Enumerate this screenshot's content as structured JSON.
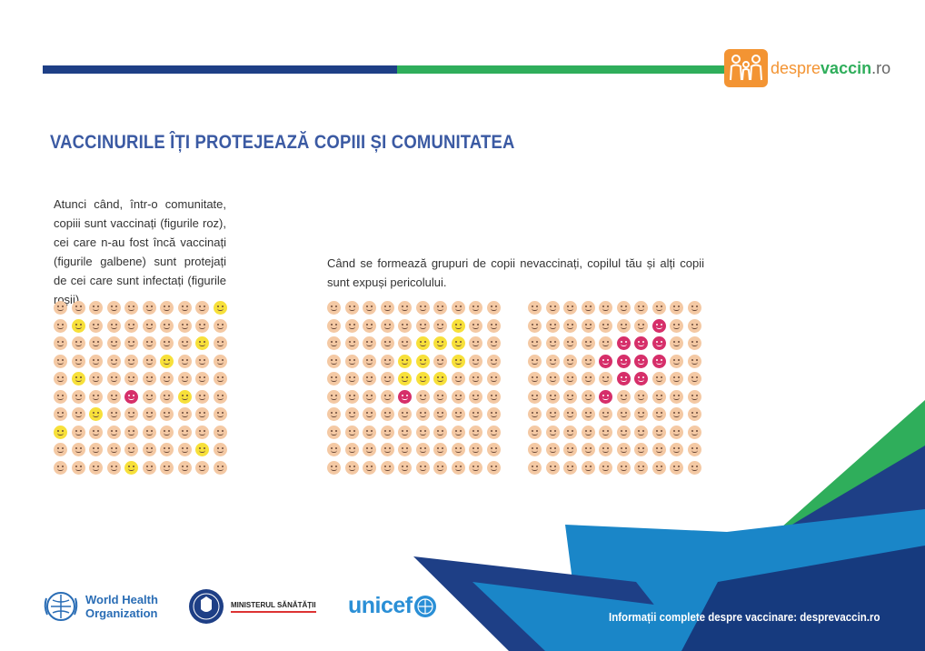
{
  "header": {
    "logo_text_part1": "despre",
    "logo_text_part2": "vaccin",
    "logo_text_part3": ".ro"
  },
  "title": "VACCINURILE ÎȚI PROTEJEAZĂ COPIII ȘI COMUNITATEA",
  "paragraph_left": "Atunci când, într-o comunitate, copiii sunt vaccinați (figurile roz), cei care n-au fost încă vaccinați (figurile galbene) sunt protejați de cei care sunt infectați (figurile roșii).",
  "paragraph_right": "Când se formează grupuri de copii nevaccinați, copilul tău și alți copii sunt expuși pericolului.",
  "grids": [
    {
      "yellow": [
        [
          0,
          9
        ],
        [
          1,
          1
        ],
        [
          2,
          8
        ],
        [
          3,
          6
        ],
        [
          4,
          1
        ],
        [
          5,
          7
        ],
        [
          6,
          2
        ],
        [
          7,
          0
        ],
        [
          8,
          8
        ],
        [
          9,
          4
        ]
      ],
      "red": [
        [
          5,
          4
        ]
      ]
    },
    {
      "yellow": [
        [
          1,
          7
        ],
        [
          2,
          5
        ],
        [
          2,
          6
        ],
        [
          2,
          7
        ],
        [
          3,
          4
        ],
        [
          3,
          5
        ],
        [
          3,
          7
        ],
        [
          4,
          4
        ],
        [
          4,
          5
        ],
        [
          4,
          6
        ]
      ],
      "red": [
        [
          5,
          4
        ]
      ]
    },
    {
      "yellow": [],
      "red": [
        [
          1,
          7
        ],
        [
          2,
          5
        ],
        [
          2,
          6
        ],
        [
          2,
          7
        ],
        [
          3,
          4
        ],
        [
          3,
          5
        ],
        [
          3,
          6
        ],
        [
          3,
          7
        ],
        [
          4,
          5
        ],
        [
          4,
          6
        ],
        [
          5,
          4
        ]
      ]
    }
  ],
  "logos": {
    "who_line1": "World Health",
    "who_line2": "Organization",
    "ministry": "MINISTERUL SĂNĂTĂȚII",
    "unicef": "unicef"
  },
  "footer": {
    "info": "Informații complete despre vaccinare: desprevaccin.ro"
  },
  "colors": {
    "blue": "#1e3f86",
    "green": "#2fae5b",
    "orange": "#f39433",
    "skin": "#f4c9a4",
    "yellow": "#f7e03a",
    "red": "#d62f6a"
  }
}
